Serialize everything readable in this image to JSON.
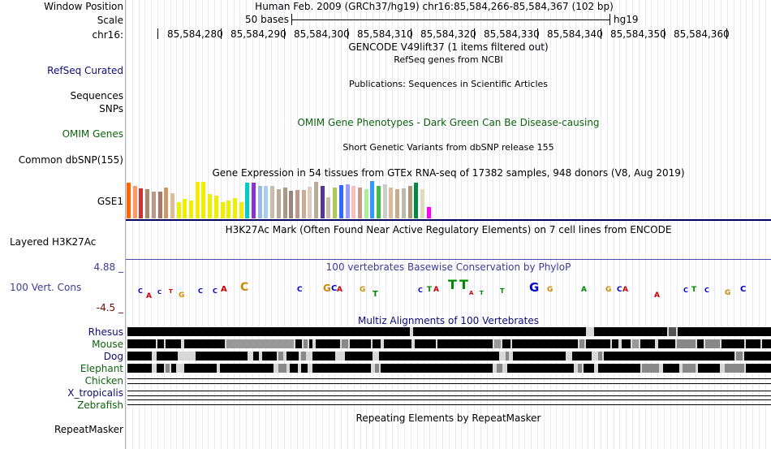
{
  "header": {
    "window_position_label": "Window Position",
    "window_position_text": "Human Feb. 2009 (GRCh37/hg19)   chr16:85,584,266-85,584,367 (102 bp)",
    "scale_label": "Scale",
    "scale_bases": "50 bases",
    "scale_assembly": "hg19",
    "chrom_label": "chr16:",
    "positions": [
      "85,584,280",
      "85,584,290",
      "85,584,300",
      "85,584,310",
      "85,584,320",
      "85,584,330",
      "85,584,340",
      "85,584,350",
      "85,584,360"
    ]
  },
  "tracks": {
    "gencode_title": "GENCODE V49lift37 (1 items filtered out)",
    "refseq_label": "RefSeq Curated",
    "refseq_title": "RefSeq genes from NCBI",
    "publications_title": "Publications: Sequences in Scientific Articles",
    "sequences_label": "Sequences",
    "snps_label": "SNPs",
    "omim_label": "OMIM Genes",
    "omim_title": "OMIM Gene Phenotypes - Dark Green Can Be Disease-causing",
    "dbsnp_label": "Common dbSNP(155)",
    "dbsnp_title": "Short Genetic Variants from dbSNP release 155",
    "gtex_title": "Gene Expression in 54 tissues from GTEx RNA-seq of 17382 samples, 948 donors (V8, Aug 2019)",
    "gtex_label": "GSE1",
    "h3k27ac_label": "Layered H3K27Ac",
    "h3k27ac_title": "H3K27Ac Mark (Often Found Near Active Regulatory Elements) on 7 cell lines from ENCODE",
    "cons_label": "100 Vert. Cons",
    "cons_title": "100 vertebrates Basewise Conservation by PhyloP",
    "cons_max": "4.88 _",
    "cons_min": "-4.5 _",
    "multiz_title": "Multiz Alignments of 100 Vertebrates",
    "species": [
      "Rhesus",
      "Mouse",
      "Dog",
      "Elephant",
      "Chicken",
      "X_tropicalis",
      "Zebrafish"
    ],
    "repeatmasker_label": "RepeatMasker",
    "repeatmasker_title": "Repeating Elements by RepeatMasker"
  },
  "colors": {
    "gtex_bars": [
      "#FF6600",
      "#FF9966",
      "#CC3333",
      "#AA8866",
      "#BB9988",
      "#AA7766",
      "#CC9966",
      "#DDBB99",
      "#EEEE00",
      "#EEEE00",
      "#EEEE00",
      "#EEEE00",
      "#EEEE00",
      "#EEEE00",
      "#EEEE00",
      "#EEEE00",
      "#EEEE00",
      "#EEEE00",
      "#EEEE00",
      "#00CCCC",
      "#8833CC",
      "#99BBDD",
      "#AACCEE",
      "#CCBBAA",
      "#BBAA99",
      "#AA9988",
      "#998877",
      "#BB9988",
      "#CCAA99",
      "#DDCCBB",
      "#BBAA99",
      "#553399",
      "#CCBBAA",
      "#AACC55",
      "#3366FF",
      "#9999FF",
      "#FFBBBB",
      "#CC9988",
      "#AAEE99",
      "#3399FF",
      "#44BB44",
      "#CCCCCC",
      "#DDBB99",
      "#CCAA88",
      "#BBBBAA",
      "#AA9977",
      "#008844",
      "#DDDDBB",
      "#FF00FF"
    ]
  }
}
